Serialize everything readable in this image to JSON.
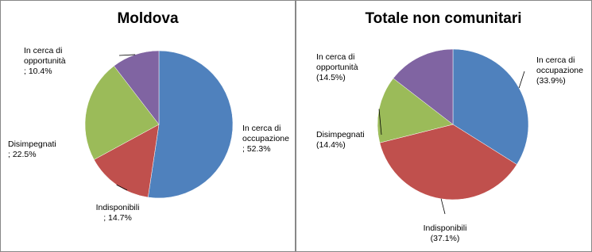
{
  "chart_data": [
    {
      "type": "pie",
      "title": "Moldova",
      "categories": [
        "In cerca di occupazione",
        "Indisponibili",
        "Disimpegnati",
        "In cerca di opportunità"
      ],
      "values": [
        52.3,
        14.7,
        22.5,
        10.4
      ],
      "value_labels": [
        "; 52.3%",
        "; 14.7%",
        "; 22.5%",
        "; 10.4%"
      ],
      "colors": [
        "#4f81bd",
        "#c0504d",
        "#9bbb59",
        "#8064a2"
      ]
    },
    {
      "type": "pie",
      "title": "Totale non comunitari",
      "categories": [
        "In cerca di occupazione",
        "Indisponibili",
        "Disimpegnati",
        "In cerca di opportunità"
      ],
      "values": [
        33.9,
        37.1,
        14.4,
        14.5
      ],
      "value_labels": [
        "(33.9%)",
        "(37.1%)",
        "(14.4%)",
        "(14.5%)"
      ],
      "colors": [
        "#4f81bd",
        "#c0504d",
        "#9bbb59",
        "#8064a2"
      ]
    }
  ]
}
